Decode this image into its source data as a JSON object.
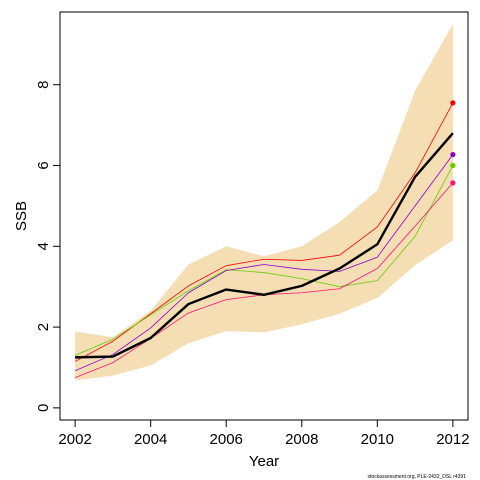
{
  "chart_data": {
    "type": "line",
    "title": "",
    "xlabel": "Year",
    "ylabel": "SSB",
    "xlim": [
      2001.6,
      2012.4
    ],
    "ylim": [
      -0.3,
      9.8
    ],
    "x_ticks": [
      "2002",
      "2004",
      "2006",
      "2008",
      "2010",
      "2012"
    ],
    "y_ticks": [
      "0",
      "2",
      "4",
      "6",
      "8"
    ],
    "x": [
      2002,
      2003,
      2004,
      2005,
      2006,
      2007,
      2008,
      2009,
      2010,
      2011,
      2012
    ],
    "band": {
      "lower": [
        0.68,
        0.8,
        1.05,
        1.6,
        1.9,
        1.87,
        2.07,
        2.33,
        2.72,
        3.53,
        4.15
      ],
      "upper": [
        1.89,
        1.75,
        2.4,
        3.55,
        4.0,
        3.75,
        4.0,
        4.6,
        5.38,
        7.85,
        9.5
      ],
      "color": "#F5DEB3"
    },
    "series": [
      {
        "values": [
          1.25,
          1.27,
          1.73,
          2.57,
          2.93,
          2.8,
          3.02,
          3.45,
          4.05,
          5.72,
          6.8
        ],
        "color": "#000000",
        "width": 2.4
      },
      {
        "values": [
          1.15,
          1.65,
          2.33,
          3.02,
          3.52,
          3.68,
          3.65,
          3.78,
          4.48,
          5.82,
          7.55
        ],
        "color": "#FF0000",
        "width": 0.8
      },
      {
        "values": [
          1.3,
          1.7,
          2.3,
          2.9,
          3.42,
          3.35,
          3.2,
          3.0,
          3.15,
          4.25,
          6.0
        ],
        "color": "#66CC00",
        "width": 0.8
      },
      {
        "values": [
          0.92,
          1.32,
          1.98,
          2.85,
          3.4,
          3.55,
          3.43,
          3.38,
          3.73,
          5.0,
          6.27
        ],
        "color": "#8800CC",
        "width": 0.8
      },
      {
        "values": [
          0.75,
          1.12,
          1.72,
          2.35,
          2.68,
          2.8,
          2.85,
          2.95,
          3.45,
          4.5,
          5.57
        ],
        "color": "#FF1177",
        "width": 0.8
      }
    ],
    "end_points": [
      {
        "x": 2012,
        "y": 7.55,
        "color": "#FF0000"
      },
      {
        "x": 2012,
        "y": 6.27,
        "color": "#8800CC"
      },
      {
        "x": 2012,
        "y": 6.0,
        "color": "#66CC00"
      },
      {
        "x": 2012,
        "y": 5.57,
        "color": "#FF1177"
      }
    ],
    "grid": false,
    "legend": "none"
  },
  "footer": {
    "credit": "stockassessment.org, PLE-2432_DSL r4391"
  }
}
